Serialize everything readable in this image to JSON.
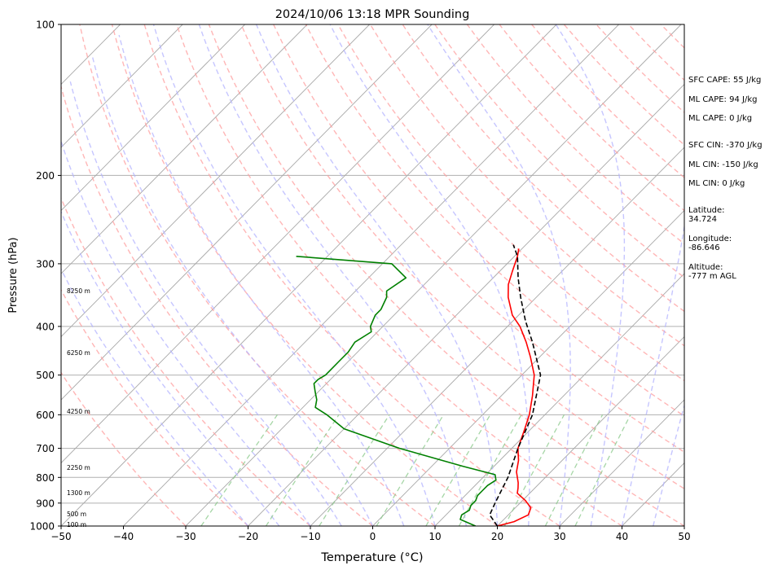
{
  "chart_data": {
    "type": "line",
    "title": "2024/10/06 13:18 MPR Sounding",
    "xlabel": "Temperature (°C)",
    "ylabel": "Pressure (hPa)",
    "xlim": [
      -50,
      50
    ],
    "ylim": [
      1000,
      100
    ],
    "y_scale": "log",
    "x_ticks": [
      "−50",
      "−40",
      "−30",
      "−20",
      "−10",
      "0",
      "10",
      "20",
      "30",
      "40",
      "50"
    ],
    "y_ticks": [
      1000,
      900,
      800,
      700,
      600,
      500,
      400,
      300,
      200,
      100
    ],
    "skew": true,
    "grid": true,
    "series": [
      {
        "color": "#ff0000",
        "points": [
          [
            20.0,
            1000
          ],
          [
            22.0,
            980
          ],
          [
            23.2,
            950
          ],
          [
            22.5,
            920
          ],
          [
            20.5,
            890
          ],
          [
            18.0,
            860
          ],
          [
            17.3,
            840
          ],
          [
            16.5,
            820
          ],
          [
            14.5,
            780
          ],
          [
            13.0,
            740
          ],
          [
            11.0,
            700
          ],
          [
            9.0,
            640
          ],
          [
            7.5,
            600
          ],
          [
            5.0,
            550
          ],
          [
            2.0,
            500
          ],
          [
            -1.5,
            460
          ],
          [
            -4.5,
            430
          ],
          [
            -8.0,
            400
          ],
          [
            -11.0,
            380
          ],
          [
            -14.5,
            350
          ],
          [
            -16.5,
            330
          ],
          [
            -18.0,
            310
          ],
          [
            -19.5,
            290
          ],
          [
            -20.5,
            280
          ]
        ]
      },
      {
        "color": "#008000",
        "points": [
          [
            16.5,
            1000
          ],
          [
            13.0,
            970
          ],
          [
            12.5,
            950
          ],
          [
            13.0,
            930
          ],
          [
            12.5,
            910
          ],
          [
            12.5,
            890
          ],
          [
            12.0,
            870
          ],
          [
            12.0,
            850
          ],
          [
            12.0,
            830
          ],
          [
            12.5,
            810
          ],
          [
            11.5,
            790
          ],
          [
            5.0,
            760
          ],
          [
            -8.0,
            700
          ],
          [
            -20.0,
            640
          ],
          [
            -25.0,
            600
          ],
          [
            -28.0,
            580
          ],
          [
            -29.0,
            560
          ],
          [
            -30.5,
            540
          ],
          [
            -32.0,
            520
          ],
          [
            -32.0,
            510
          ],
          [
            -31.5,
            500
          ],
          [
            -31.5,
            490
          ],
          [
            -31.5,
            470
          ],
          [
            -31.5,
            450
          ],
          [
            -32.0,
            430
          ],
          [
            -31.0,
            410
          ],
          [
            -32.0,
            400
          ],
          [
            -33.0,
            380
          ],
          [
            -33.0,
            370
          ],
          [
            -34.0,
            350
          ],
          [
            -35.0,
            340
          ],
          [
            -34.0,
            320
          ],
          [
            -38.5,
            300
          ],
          [
            -55.0,
            290
          ]
        ]
      },
      {
        "color": "#000000",
        "style": "dashed",
        "points": [
          [
            20.0,
            1000
          ],
          [
            17.0,
            950
          ],
          [
            16.0,
            900
          ],
          [
            14.0,
            800
          ],
          [
            11.0,
            700
          ],
          [
            8.0,
            600
          ],
          [
            3.0,
            500
          ],
          [
            -3.5,
            430
          ],
          [
            -8.0,
            390
          ],
          [
            -12.5,
            350
          ],
          [
            -16.0,
            320
          ],
          [
            -19.5,
            290
          ],
          [
            -22.0,
            275
          ]
        ]
      }
    ],
    "height_labels": [
      "8250 m",
      "6250 m",
      "4250 m",
      "2250 m",
      "1300 m",
      "500 m",
      "100 m"
    ]
  },
  "stats": {
    "sfc_cape": "SFC CAPE: 55 J/kg",
    "ml_cape_1": "ML CAPE: 94 J/kg",
    "ml_cape_2": "ML CAPE: 0 J/kg",
    "sfc_cin": "SFC CIN: -370 J/kg",
    "ml_cin_1": "ML CIN: -150 J/kg",
    "ml_cin_2": "ML CIN: 0 J/kg",
    "latitude": "Latitude:\n34.724",
    "longitude": "Longitude:\n-86.646",
    "altitude": "Altitude:\n-777 m AGL"
  }
}
